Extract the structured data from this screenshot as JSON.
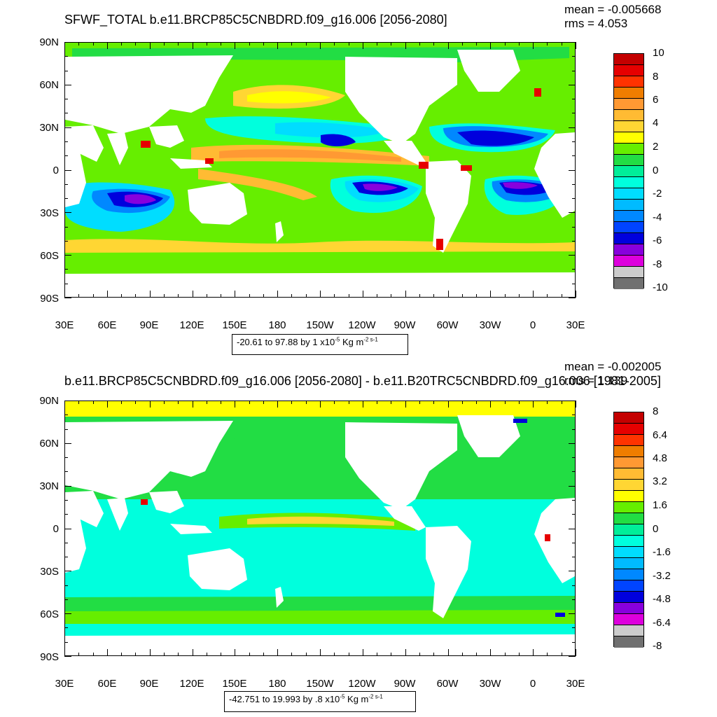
{
  "panels": [
    {
      "title": "SFWF_TOTAL b.e11.BRCP85C5CNBDRD.f09_g16.006 [2056-2080]",
      "mean": "mean = -0.005668",
      "rms": "rms = 4.053",
      "lat_labels": [
        "90N",
        "60N",
        "30N",
        "0",
        "30S",
        "60S",
        "90S"
      ],
      "lon_labels": [
        "30E",
        "60E",
        "90E",
        "120E",
        "150E",
        "180",
        "150W",
        "120W",
        "90W",
        "60W",
        "30W",
        "0",
        "30E"
      ],
      "colorbar_colors": [
        "#c40000",
        "#e60000",
        "#ff3300",
        "#ef7d00",
        "#ff9933",
        "#ffbb33",
        "#ffd633",
        "#ffff00",
        "#66ee00",
        "#22dd44",
        "#00ee99",
        "#00ffdd",
        "#00ddff",
        "#00bbff",
        "#0088ff",
        "#0044ff",
        "#0000dd",
        "#8800dd",
        "#dd00dd",
        "#cccccc",
        "#707070"
      ],
      "colorbar_labels": [
        "10",
        "8",
        "6",
        "4",
        "2",
        "0",
        "-2",
        "-4",
        "-6",
        "-8",
        "-10"
      ],
      "range_text": "-20.61 to 97.88 by 1 x10",
      "range_exp": "-5",
      "range_units": " Kg m",
      "range_units_exp": "-2 s-1",
      "chart_data": {
        "type": "heatmap",
        "title": "SFWF_TOTAL b.e11.BRCP85C5CNBDRD.f09_g16.006 [2056-2080]",
        "variable": "SFWF_TOTAL",
        "units": "x10-5 Kg m-2 s-1",
        "mean": -0.005668,
        "rms": 4.053,
        "data_min": -20.61,
        "data_max": 97.88,
        "contour_interval": 1,
        "colorbar_levels": [
          -10,
          -8,
          -6,
          -4,
          -2,
          0,
          2,
          4,
          6,
          8,
          10
        ],
        "x_range": [
          "30E",
          "30E"
        ],
        "y_range": [
          "90S",
          "90N"
        ]
      }
    },
    {
      "title": "b.e11.BRCP85C5CNBDRD.f09_g16.006 [2056-2080] - b.e11.B20TRC5CNBDRD.f09_g16.006 [1981-2005]",
      "mean": "mean = -0.002005",
      "rms": "rms = 1.139",
      "lat_labels": [
        "90N",
        "60N",
        "30N",
        "0",
        "30S",
        "60S",
        "90S"
      ],
      "lon_labels": [
        "30E",
        "60E",
        "90E",
        "120E",
        "150E",
        "180",
        "150W",
        "120W",
        "90W",
        "60W",
        "30W",
        "0",
        "30E"
      ],
      "colorbar_colors": [
        "#c40000",
        "#e60000",
        "#ff3300",
        "#ef7d00",
        "#ff9933",
        "#ffbb33",
        "#ffd633",
        "#ffff00",
        "#66ee00",
        "#22dd44",
        "#00ee99",
        "#00ffdd",
        "#00ddff",
        "#00bbff",
        "#0088ff",
        "#0044ff",
        "#0000dd",
        "#8800dd",
        "#dd00dd",
        "#cccccc",
        "#707070"
      ],
      "colorbar_labels": [
        "8",
        "6.4",
        "4.8",
        "3.2",
        "1.6",
        "0",
        "-1.6",
        "-3.2",
        "-4.8",
        "-6.4",
        "-8"
      ],
      "range_text": "-42.751 to 19.993 by .8 x10",
      "range_exp": "-5",
      "range_units": " Kg m",
      "range_units_exp": "-2 s-1",
      "chart_data": {
        "type": "heatmap",
        "title": "b.e11.BRCP85C5CNBDRD.f09_g16.006 [2056-2080] - b.e11.B20TRC5CNBDRD.f09_g16.006 [1981-2005]",
        "units": "x10-5 Kg m-2 s-1",
        "mean": -0.002005,
        "rms": 1.139,
        "data_min": -42.751,
        "data_max": 19.993,
        "contour_interval": 0.8,
        "colorbar_levels": [
          -8,
          -6.4,
          -4.8,
          -3.2,
          -1.6,
          0,
          1.6,
          3.2,
          4.8,
          6.4,
          8
        ],
        "x_range": [
          "30E",
          "30E"
        ],
        "y_range": [
          "90S",
          "90N"
        ]
      }
    }
  ]
}
